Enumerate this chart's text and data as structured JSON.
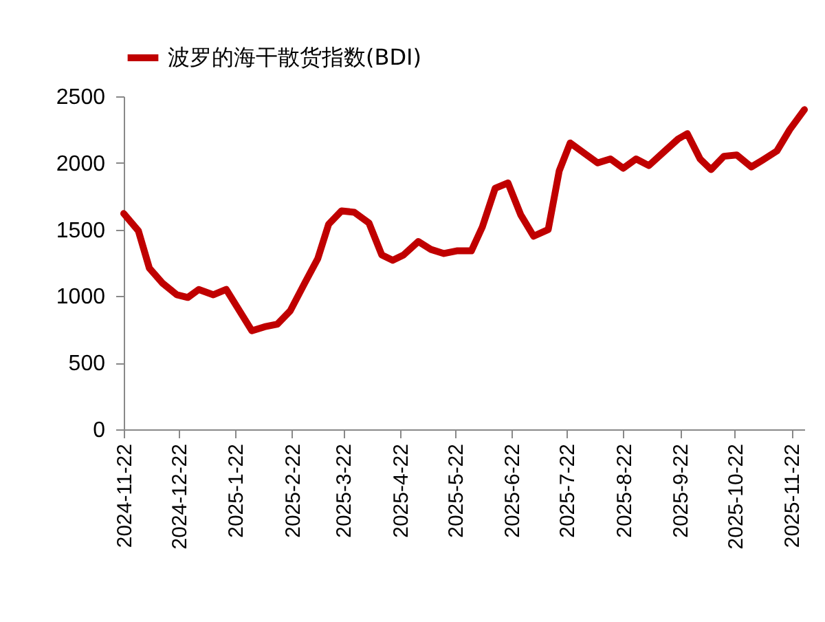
{
  "chart_data": {
    "type": "line",
    "legend": "top",
    "grid": false,
    "marker": "none",
    "line_style": "solid",
    "x": [
      "2024-11-22",
      "2024-11-30",
      "2024-12-06",
      "2024-12-13",
      "2024-12-21",
      "2024-12-27",
      "2025-01-02",
      "2025-01-10",
      "2025-01-17",
      "2025-01-31",
      "2025-02-07",
      "2025-02-14",
      "2025-02-21",
      "2025-03-01",
      "2025-03-08",
      "2025-03-14",
      "2025-03-21",
      "2025-03-28",
      "2025-04-05",
      "2025-04-12",
      "2025-04-18",
      "2025-04-24",
      "2025-05-02",
      "2025-05-09",
      "2025-05-16",
      "2025-05-23",
      "2025-05-31",
      "2025-06-06",
      "2025-06-13",
      "2025-06-20",
      "2025-06-27",
      "2025-07-04",
      "2025-07-12",
      "2025-07-18",
      "2025-07-24",
      "2025-08-01",
      "2025-08-08",
      "2025-08-15",
      "2025-08-22",
      "2025-08-29",
      "2025-09-05",
      "2025-09-13",
      "2025-09-21",
      "2025-09-26",
      "2025-10-03",
      "2025-10-09",
      "2025-10-16",
      "2025-10-23",
      "2025-10-31",
      "2025-11-06",
      "2025-11-14",
      "2025-11-21",
      "2025-11-29"
    ],
    "series": [
      {
        "name": "波罗的海干散货指数(BDI)",
        "color": "#c00000",
        "values": [
          1620,
          1490,
          1210,
          1100,
          1010,
          990,
          1050,
          1010,
          1050,
          740,
          770,
          790,
          890,
          1100,
          1280,
          1540,
          1640,
          1630,
          1550,
          1310,
          1270,
          1310,
          1410,
          1350,
          1320,
          1340,
          1340,
          1520,
          1810,
          1850,
          1610,
          1450,
          1500,
          1940,
          2150,
          2070,
          2000,
          2030,
          1960,
          2030,
          1980,
          2080,
          2180,
          2220,
          2030,
          1950,
          2050,
          2060,
          1970,
          2020,
          2090,
          2250,
          2400
        ]
      }
    ],
    "xlim": [
      "2024-11-22",
      "2025-11-29"
    ],
    "xticks": [
      {
        "value": "2024-11-22",
        "label": "2024-11-22"
      },
      {
        "value": "2024-12-22",
        "label": "2024-12-22"
      },
      {
        "value": "2025-01-22",
        "label": "2025-1-22"
      },
      {
        "value": "2025-02-22",
        "label": "2025-2-22"
      },
      {
        "value": "2025-03-22",
        "label": "2025-3-22"
      },
      {
        "value": "2025-04-22",
        "label": "2025-4-22"
      },
      {
        "value": "2025-05-22",
        "label": "2025-5-22"
      },
      {
        "value": "2025-06-22",
        "label": "2025-6-22"
      },
      {
        "value": "2025-07-22",
        "label": "2025-7-22"
      },
      {
        "value": "2025-08-22",
        "label": "2025-8-22"
      },
      {
        "value": "2025-09-22",
        "label": "2025-9-22"
      },
      {
        "value": "2025-10-22",
        "label": "2025-10-22"
      },
      {
        "value": "2025-11-22",
        "label": "2025-11-22"
      }
    ],
    "ylim": [
      0,
      2500
    ],
    "yticks": [
      0,
      500,
      1000,
      1500,
      2000,
      2500
    ]
  }
}
